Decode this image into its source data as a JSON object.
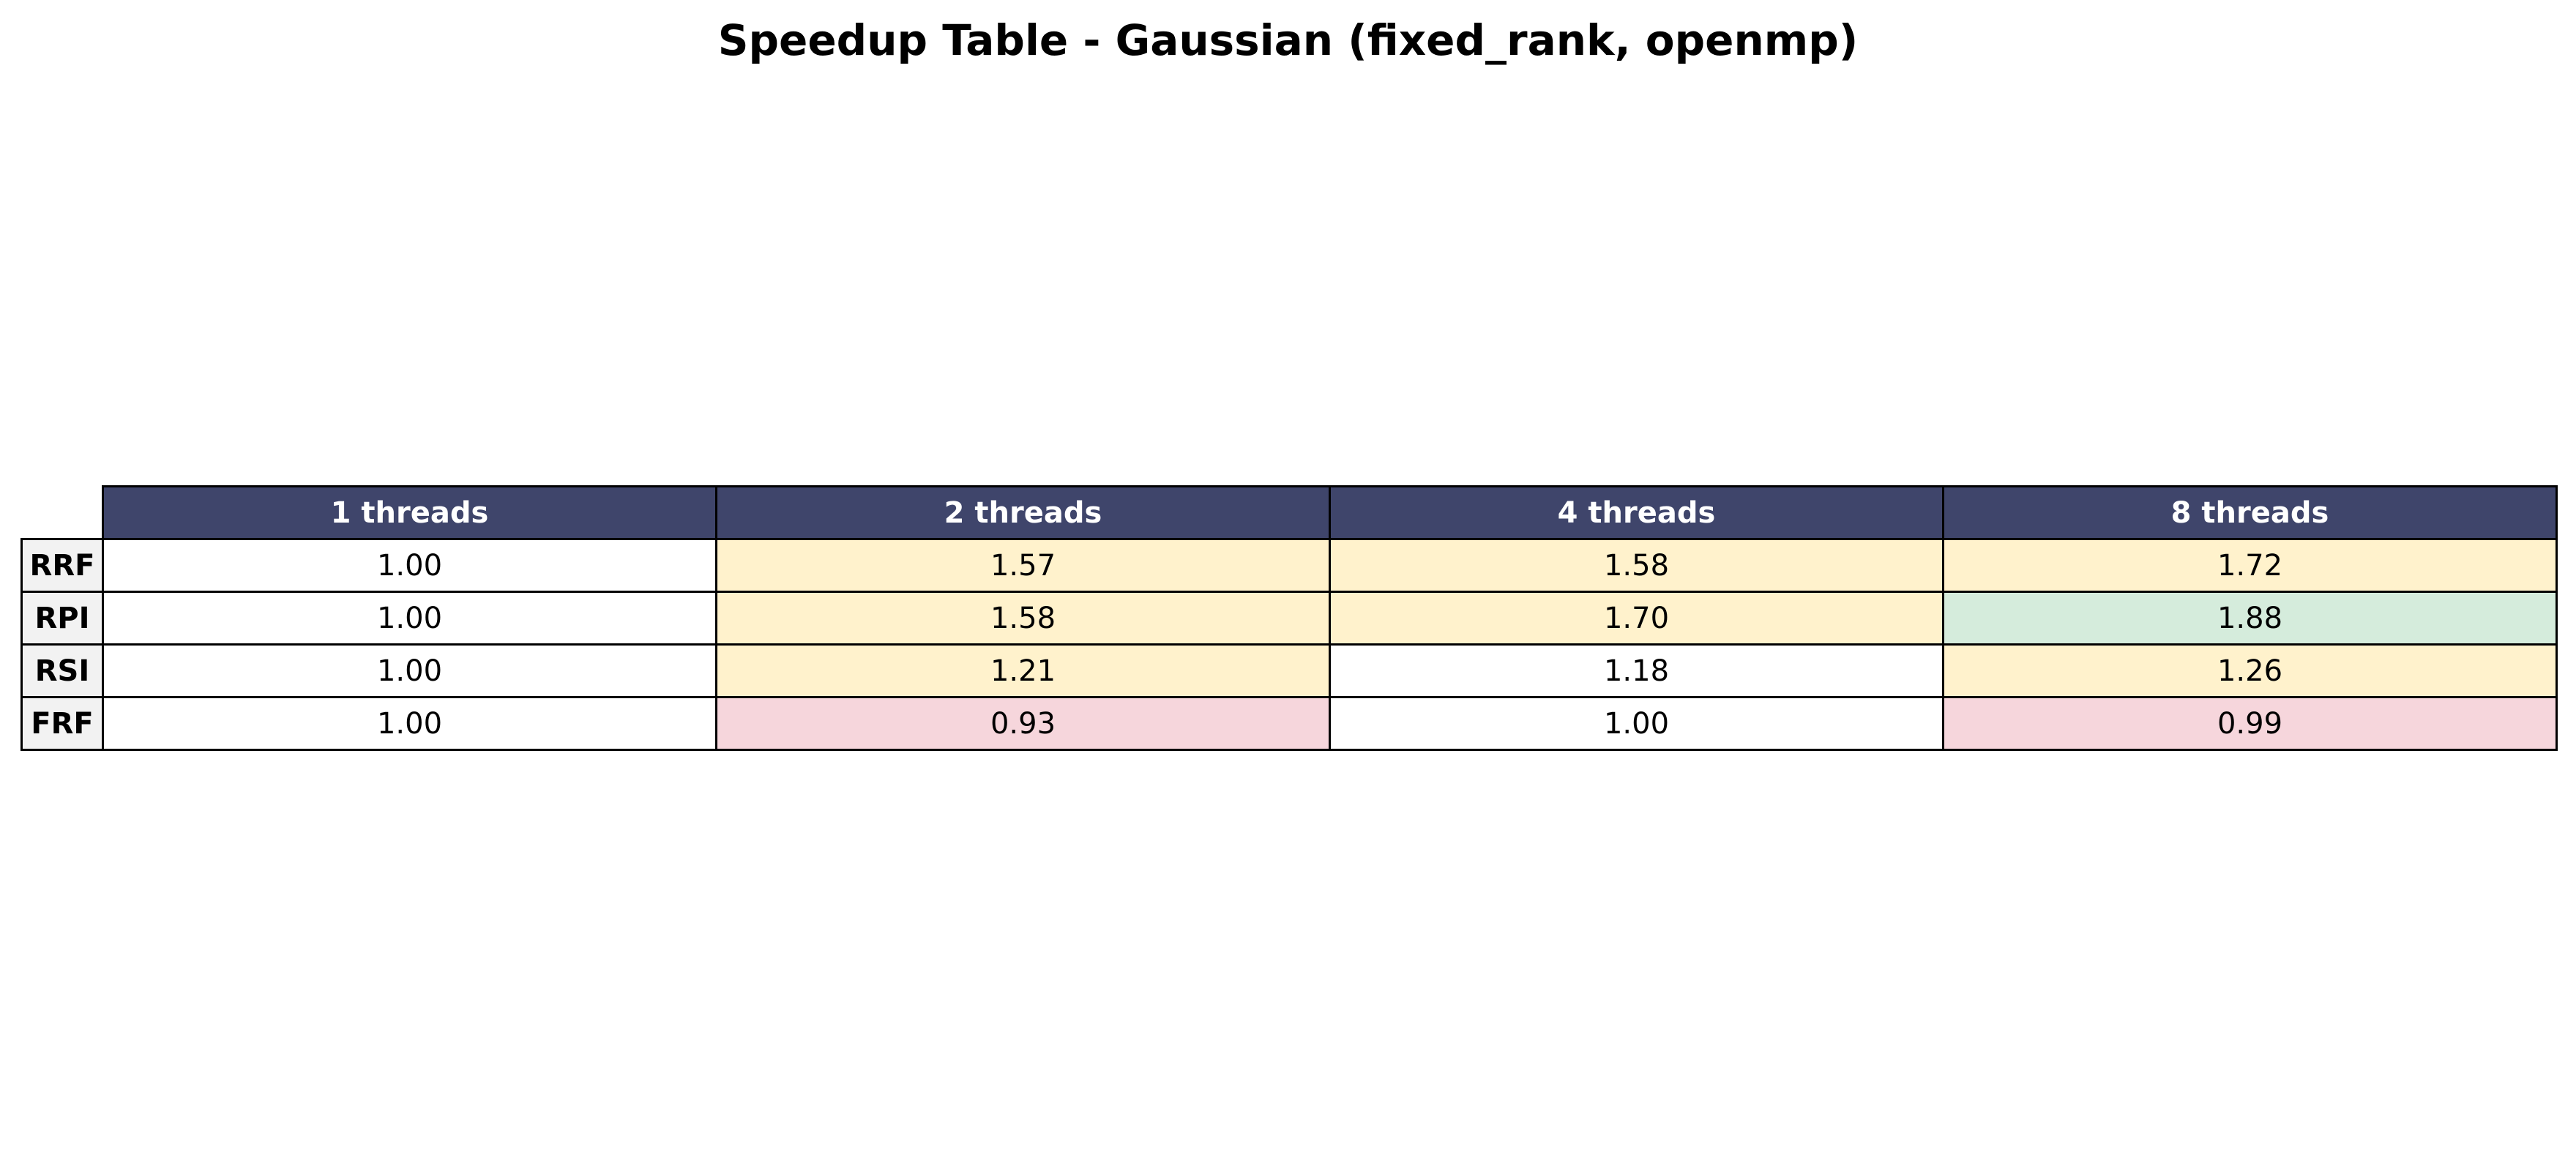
{
  "chart_data": {
    "type": "table",
    "title": "Speedup Table - Gaussian (fixed_rank, openmp)",
    "columns": [
      "1 threads",
      "2 threads",
      "4 threads",
      "8 threads"
    ],
    "rows": [
      {
        "label": "RRF",
        "values": [
          "1.00",
          "1.57",
          "1.58",
          "1.72"
        ]
      },
      {
        "label": "RPI",
        "values": [
          "1.00",
          "1.58",
          "1.70",
          "1.88"
        ]
      },
      {
        "label": "RSI",
        "values": [
          "1.00",
          "1.21",
          "1.18",
          "1.26"
        ]
      },
      {
        "label": "FRF",
        "values": [
          "1.00",
          "0.93",
          "1.00",
          "0.99"
        ]
      }
    ],
    "colors": {
      "header_bg": "#3f456b",
      "header_text": "#ffffff",
      "row_header_bg": "#f2f2f2",
      "neutral": "#ffffff",
      "moderate_speedup": "#fff2cc",
      "high_speedup": "#d5ecdc",
      "slowdown": "#f6d6dc"
    }
  }
}
